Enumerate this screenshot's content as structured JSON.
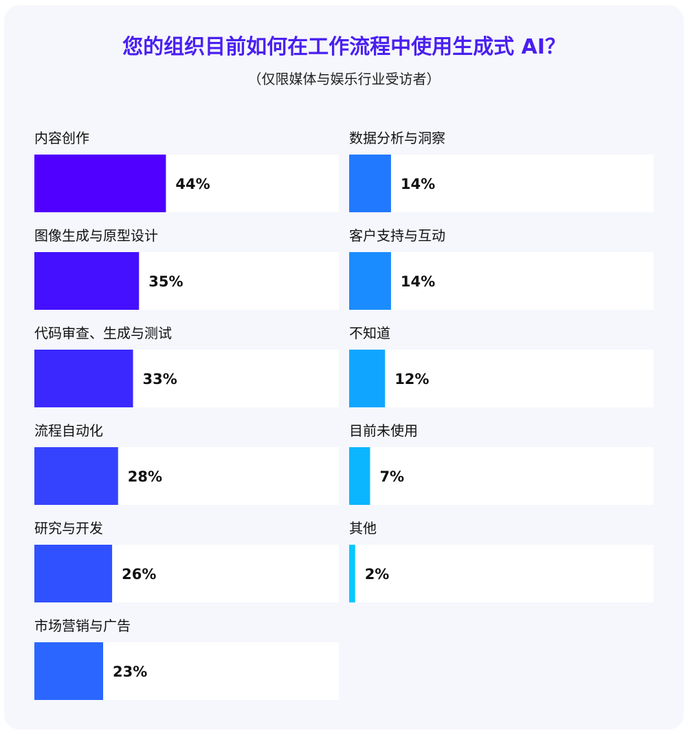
{
  "chart_data": {
    "type": "bar",
    "orientation": "horizontal",
    "title": "您的组织目前如何在工作流程中使用生成式 AI？",
    "subtitle": "（仅限媒体与娱乐行业受访者）",
    "xlim": [
      0,
      100
    ],
    "categories": [
      "内容创作",
      "图像生成与原型设计",
      "代码审查、生成与测试",
      "流程自动化",
      "研究与开发",
      "市场营销与广告",
      "数据分析与洞察",
      "客户支持与互动",
      "不知道",
      "目前未使用",
      "其他"
    ],
    "values": [
      44,
      35,
      33,
      28,
      26,
      23,
      14,
      14,
      12,
      7,
      2
    ],
    "value_labels": [
      "44%",
      "35%",
      "33%",
      "28%",
      "26%",
      "23%",
      "14%",
      "14%",
      "12%",
      "7%",
      "2%"
    ],
    "colors": [
      "#4f00ff",
      "#4410ff",
      "#3a28ff",
      "#3543ff",
      "#3051ff",
      "#2a66ff",
      "#2179ff",
      "#1a8cff",
      "#10a6ff",
      "#0cb6ff",
      "#05c8ff"
    ],
    "track_color": "#ffffff",
    "columns": 2,
    "grid": false,
    "legend": "none"
  }
}
